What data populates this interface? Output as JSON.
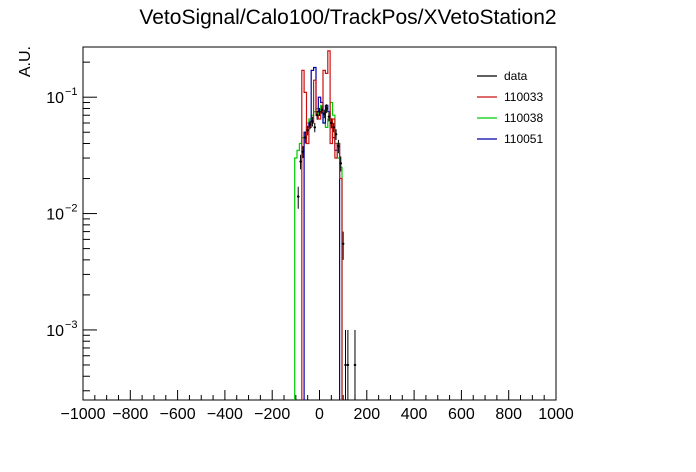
{
  "chart_data": {
    "type": "line",
    "title": "VetoSignal/Calo100/TrackPos/XVetoStation2",
    "xlabel": "",
    "ylabel": "A.U.",
    "xlim": [
      -1000,
      1000
    ],
    "ylim": [
      0.00025,
      0.27
    ],
    "yscale": "log",
    "grid": false,
    "legend_position": "top-right",
    "x_ticks": [
      -1000,
      -800,
      -600,
      -400,
      -200,
      0,
      200,
      400,
      600,
      800,
      1000
    ],
    "x_tick_labels": [
      "−1000",
      "−800",
      "−600",
      "−400",
      "−200",
      "0",
      "200",
      "400",
      "600",
      "800",
      "1000"
    ],
    "y_ticks": [
      {
        "value": 0.001,
        "base": "10",
        "exp": "−3"
      },
      {
        "value": 0.01,
        "base": "10",
        "exp": "−2"
      },
      {
        "value": 0.1,
        "base": "10",
        "exp": "−1"
      }
    ],
    "series": [
      {
        "name": "data",
        "color": "#000000",
        "style": "points",
        "x": [
          -90,
          -80,
          -70,
          -60,
          -50,
          -40,
          -30,
          -20,
          -10,
          0,
          10,
          20,
          30,
          40,
          50,
          60,
          70,
          80,
          90,
          100,
          110,
          120,
          150
        ],
        "values": [
          0.014,
          0.028,
          0.034,
          0.045,
          0.052,
          0.058,
          0.062,
          0.055,
          0.07,
          0.075,
          0.078,
          0.072,
          0.08,
          0.068,
          0.06,
          0.055,
          0.048,
          0.038,
          0.027,
          0.0055,
          0.0005,
          0.0005,
          0.0005
        ],
        "errors": [
          0.003,
          0.004,
          0.004,
          0.005,
          0.005,
          0.005,
          0.006,
          0.005,
          0.006,
          0.006,
          0.006,
          0.006,
          0.007,
          0.006,
          0.006,
          0.005,
          0.005,
          0.005,
          0.004,
          0.0015,
          0.0005,
          0.0005,
          0.0005
        ]
      },
      {
        "name": "110033",
        "color": "#cc1111",
        "style": "step",
        "x": [
          -70,
          -60,
          -50,
          -40,
          -30,
          -20,
          -10,
          0,
          10,
          20,
          30,
          40,
          50,
          60,
          70,
          80,
          90
        ],
        "values": [
          0.17,
          0.11,
          0.04,
          0.055,
          0.06,
          0.14,
          0.07,
          0.065,
          0.075,
          0.17,
          0.16,
          0.25,
          0.04,
          0.065,
          0.03,
          0.04,
          0.02
        ]
      },
      {
        "name": "110038",
        "color": "#00cc00",
        "style": "step",
        "x": [
          -100,
          -90,
          -80,
          -70,
          -60,
          -50,
          -40,
          -30,
          -20,
          -10,
          0,
          10,
          20,
          30,
          40,
          50,
          60,
          70,
          80,
          90
        ],
        "values": [
          0.03,
          0.035,
          0.04,
          0.045,
          0.05,
          0.06,
          0.065,
          0.07,
          0.075,
          0.08,
          0.07,
          0.085,
          0.06,
          0.055,
          0.065,
          0.09,
          0.07,
          0.04,
          0.03,
          0.025
        ]
      },
      {
        "name": "110051",
        "color": "#0000aa",
        "style": "step",
        "x": [
          -60,
          -50,
          -40,
          -30,
          -20,
          -10,
          0,
          10,
          20,
          30,
          40,
          50,
          60,
          70,
          80
        ],
        "values": [
          0.05,
          0.055,
          0.06,
          0.17,
          0.18,
          0.075,
          0.1,
          0.09,
          0.06,
          0.085,
          0.075,
          0.06,
          0.045,
          0.035,
          0.04
        ]
      }
    ]
  }
}
